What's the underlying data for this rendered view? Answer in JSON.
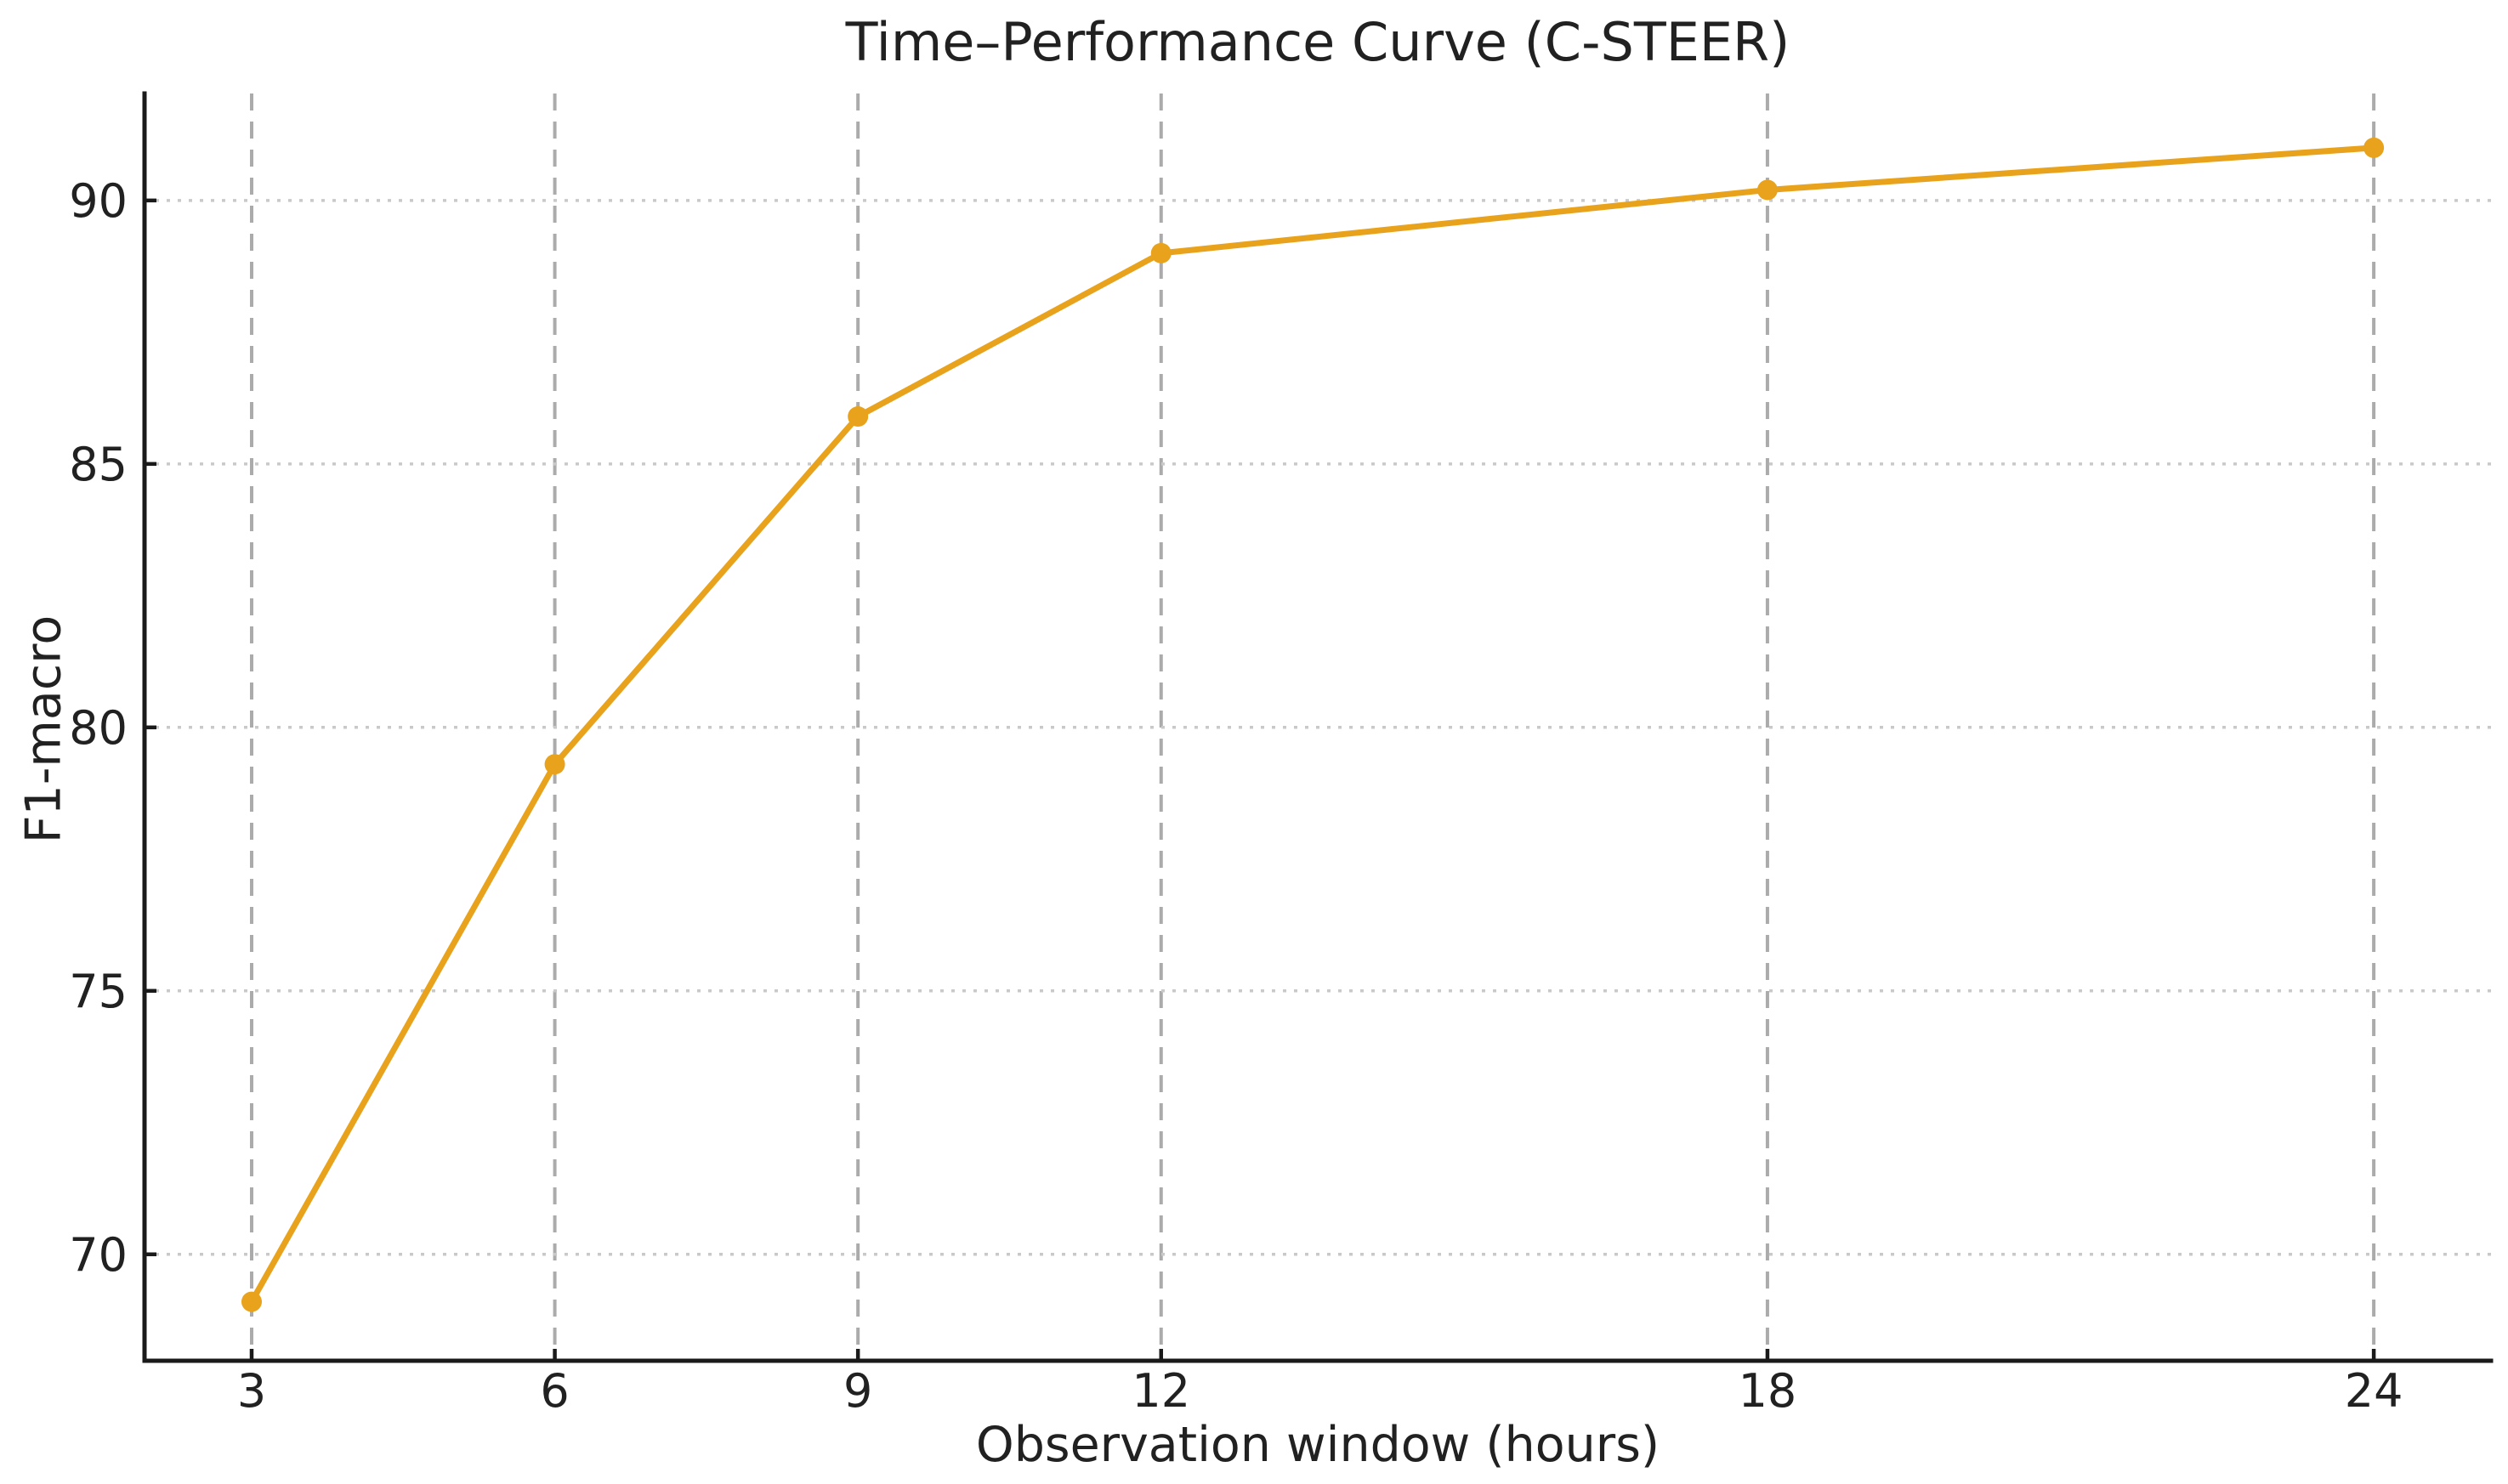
{
  "page": {
    "background": "#ffffff"
  },
  "colors": {
    "accent_line": "#E8A21C",
    "marker": "#E8A21C",
    "text": "#212121",
    "spine": "#1a1a1a",
    "grid_vertical": "#ababab",
    "grid_horizontal": "#c9c9c9"
  },
  "chart_data": {
    "type": "line",
    "title": "Time–Performance Curve (C-STEER)",
    "xlabel": "Observation window (hours)",
    "ylabel": "F1-macro",
    "x": [
      3,
      6,
      9,
      12,
      18,
      24
    ],
    "y": [
      69.1,
      79.3,
      85.9,
      89.0,
      90.2,
      91.0
    ],
    "x_ticks": [
      3,
      6,
      9,
      12,
      18,
      24
    ],
    "x_tick_labels": [
      "3",
      "6",
      "9",
      "12",
      "18",
      "24"
    ],
    "y_ticks": [
      70,
      75,
      80,
      85,
      90
    ],
    "y_tick_labels": [
      "70",
      "75",
      "80",
      "85",
      "90"
    ],
    "xlim": [
      1.94,
      25.16
    ],
    "ylim": [
      67.98,
      92.03
    ],
    "grid": {
      "vertical_style": "dashed",
      "horizontal_style": "dotted",
      "grid_on": true
    },
    "legend": "none",
    "marker": "circle",
    "tick_direction": "in",
    "spines": [
      "left",
      "bottom"
    ]
  }
}
